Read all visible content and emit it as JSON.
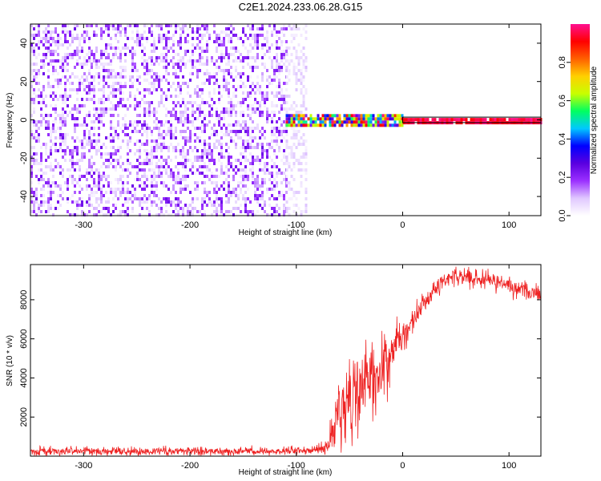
{
  "title": "C2E1.2024.233.06.28.G15",
  "chart_data": [
    {
      "type": "heatmap",
      "xlabel": "Height of straight line (km)",
      "ylabel": "Frequency (Hz)",
      "xlim": [
        -350,
        130
      ],
      "ylim": [
        -50,
        50
      ],
      "xticks": [
        -300,
        -200,
        -100,
        0,
        100
      ],
      "yticks": [
        -40,
        -20,
        0,
        20,
        40
      ],
      "colorbar": {
        "label": "Normalized spectral amplitude",
        "range": [
          0,
          1
        ],
        "ticks": [
          0.0,
          0.2,
          0.4,
          0.6,
          0.8
        ],
        "colormap": [
          "#ffffff",
          "#e0c8ff",
          "#9b30ff",
          "#5a00e0",
          "#0000ff",
          "#00c8ff",
          "#00ff60",
          "#c8ff00",
          "#ffd000",
          "#ff6000",
          "#ff0000",
          "#ff1090"
        ]
      },
      "regions": [
        {
          "x_range": [
            -350,
            -110
          ],
          "desc": "broadband noise",
          "amplitude_range": [
            0.0,
            0.25
          ],
          "freq_range": [
            -50,
            50
          ]
        },
        {
          "x_range": [
            -110,
            -90
          ],
          "desc": "fading noise",
          "amplitude_range": [
            0.0,
            0.1
          ],
          "freq_range": [
            -50,
            50
          ]
        },
        {
          "x_range": [
            -110,
            0
          ],
          "desc": "signal onset",
          "amplitude_range": [
            0.2,
            1.0
          ],
          "freq_center": 0,
          "freq_halfwidth": 3
        },
        {
          "x_range": [
            0,
            130
          ],
          "desc": "steady signal",
          "amplitude_range": [
            0.9,
            1.0
          ],
          "freq_center": 0,
          "freq_halfwidth": 1
        }
      ]
    },
    {
      "type": "line",
      "xlabel": "Height of straight line (km)",
      "ylabel": "SNR (10 * v/v)",
      "xlim": [
        -350,
        130
      ],
      "ylim": [
        0,
        9800
      ],
      "xticks": [
        -300,
        -200,
        -100,
        0,
        100
      ],
      "yticks": [
        2000,
        4000,
        6000,
        8000
      ],
      "color": "#ee2222",
      "series": [
        {
          "x": [
            -350,
            -300,
            -250,
            -200,
            -150,
            -100,
            -80,
            -70,
            -65,
            -60,
            -55,
            -50,
            -45,
            -40,
            -35,
            -30,
            -25,
            -20,
            -15,
            -10,
            -5,
            0,
            10,
            20,
            30,
            40,
            50,
            60,
            70,
            80,
            90,
            100,
            110,
            120,
            130
          ],
          "values": [
            250,
            250,
            250,
            250,
            250,
            280,
            350,
            500,
            1200,
            2300,
            2600,
            2700,
            2900,
            3300,
            3400,
            3700,
            4100,
            4700,
            5200,
            5400,
            5800,
            6100,
            6900,
            7800,
            8600,
            9050,
            9200,
            9150,
            9100,
            9000,
            8850,
            8750,
            8550,
            8400,
            8250
          ],
          "noise": [
            120,
            120,
            120,
            120,
            120,
            120,
            150,
            300,
            700,
            1100,
            1200,
            1250,
            1300,
            1300,
            1250,
            1200,
            1100,
            1000,
            900,
            750,
            600,
            450,
            350,
            300,
            260,
            260,
            260,
            250,
            250,
            240,
            240,
            240,
            240,
            240,
            240
          ]
        }
      ]
    }
  ]
}
